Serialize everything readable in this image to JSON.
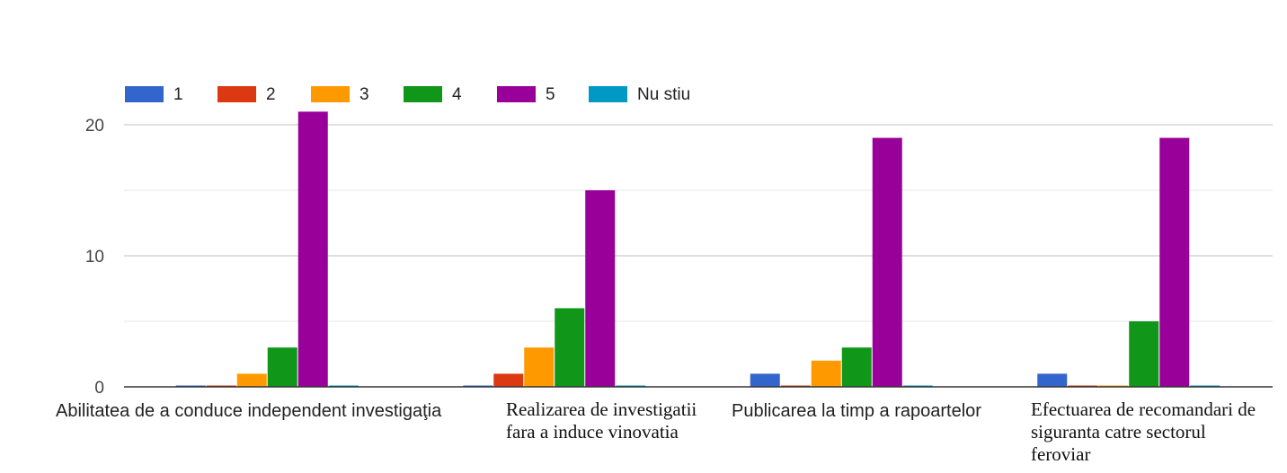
{
  "chart_data": {
    "type": "bar",
    "categories": [
      "Abilitatea de a conduce independent investigaţia",
      "Realizarea de investigatii fara a induce vinovatia",
      "Publicarea la timp a rapoartelor",
      "Efectuarea de recomandari de siguranta catre sectorul feroviar"
    ],
    "series": [
      {
        "name": "1",
        "color": "#3366cc",
        "values": [
          0,
          0,
          1,
          1
        ]
      },
      {
        "name": "2",
        "color": "#dc3912",
        "values": [
          0,
          1,
          0,
          0
        ]
      },
      {
        "name": "3",
        "color": "#ff9900",
        "values": [
          1,
          3,
          2,
          0
        ]
      },
      {
        "name": "4",
        "color": "#109618",
        "values": [
          3,
          6,
          3,
          5
        ]
      },
      {
        "name": "5",
        "color": "#990099",
        "values": [
          21,
          15,
          19,
          19
        ]
      },
      {
        "name": "Nu stiu",
        "color": "#0099c6",
        "values": [
          0,
          0,
          0,
          0
        ]
      }
    ],
    "y_ticks": [
      "0",
      "10",
      "20"
    ],
    "ylim": [
      0,
      22
    ],
    "gridlines": true,
    "legend_position": "top-left"
  }
}
